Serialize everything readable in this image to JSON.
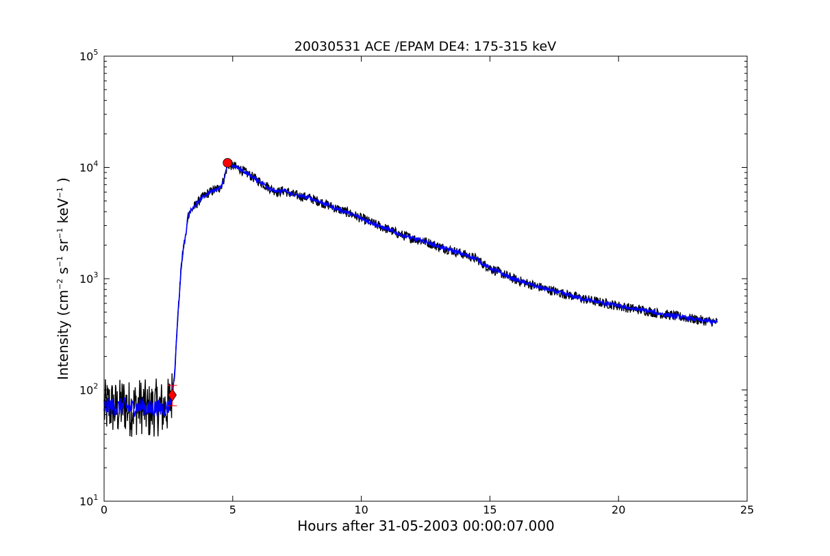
{
  "chart_data": {
    "type": "line",
    "title": "20030531 ACE /EPAM DE4: 175-315 keV",
    "xlabel": "Hours after 31-05-2003 00:00:07.000",
    "ylabel": {
      "prefix": "Intensity (cm",
      "exp1": "−2",
      "part2": " s",
      "exp2": "−1",
      "part3": " sr",
      "exp3": "−1",
      "part4": " keV",
      "exp4": "−1",
      "suffix": " )"
    },
    "xlim": [
      0,
      25
    ],
    "ylim": [
      10,
      100000
    ],
    "yscale": "log",
    "x_ticks": [
      "0",
      "5",
      "10",
      "15",
      "20",
      "25"
    ],
    "y_ticks": [
      {
        "base": "10",
        "exp": "1"
      },
      {
        "base": "10",
        "exp": "2"
      },
      {
        "base": "10",
        "exp": "3"
      },
      {
        "base": "10",
        "exp": "4"
      },
      {
        "base": "10",
        "exp": "5"
      }
    ],
    "grid": false,
    "series": [
      {
        "color": "#000000",
        "style": "raw-noisy",
        "x": [
          0,
          0.25,
          0.5,
          0.75,
          1.0,
          1.25,
          1.5,
          1.75,
          2.0,
          2.25,
          2.5,
          2.65,
          2.75,
          2.85,
          3.0,
          3.1,
          3.2,
          3.25,
          3.3,
          3.5,
          3.75,
          4.0,
          4.25,
          4.5,
          4.6,
          4.7,
          4.8,
          5.0,
          5.25,
          5.5,
          6.0,
          6.5,
          6.75,
          7.0,
          7.25,
          7.5,
          8.0,
          8.5,
          9.0,
          9.5,
          10.0,
          10.5,
          11.0,
          11.5,
          12.0,
          12.5,
          13.0,
          13.5,
          14.0,
          14.5,
          14.75,
          15.0,
          15.5,
          16.0,
          16.5,
          17.0,
          17.5,
          18.0,
          18.5,
          19.0,
          19.5,
          20.0,
          20.5,
          21.0,
          21.5,
          22.0,
          22.5,
          23.0,
          23.5,
          23.85
        ],
        "y": [
          68,
          72,
          66,
          75,
          68,
          70,
          72,
          64,
          70,
          68,
          72,
          90,
          150,
          400,
          1300,
          2000,
          2600,
          3600,
          3900,
          4400,
          5200,
          5800,
          6200,
          6600,
          7200,
          8500,
          10500,
          10400,
          9800,
          9000,
          7600,
          6400,
          6000,
          6200,
          5800,
          5600,
          5300,
          4800,
          4300,
          3900,
          3500,
          3100,
          2800,
          2500,
          2300,
          2150,
          1950,
          1800,
          1650,
          1500,
          1350,
          1250,
          1100,
          980,
          900,
          830,
          770,
          720,
          670,
          630,
          600,
          570,
          540,
          520,
          490,
          470,
          450,
          430,
          415,
          405
        ]
      },
      {
        "color": "#0000ff",
        "style": "smoothed",
        "x": [
          0,
          0.25,
          0.5,
          0.75,
          1.0,
          1.25,
          1.5,
          1.75,
          2.0,
          2.25,
          2.5,
          2.65,
          2.75,
          2.85,
          3.0,
          3.1,
          3.2,
          3.25,
          3.3,
          3.5,
          3.75,
          4.0,
          4.25,
          4.5,
          4.6,
          4.7,
          4.8,
          5.0,
          5.25,
          5.5,
          6.0,
          6.5,
          6.75,
          7.0,
          7.25,
          7.5,
          8.0,
          8.5,
          9.0,
          9.5,
          10.0,
          10.5,
          11.0,
          11.5,
          12.0,
          12.5,
          13.0,
          13.5,
          14.0,
          14.5,
          14.75,
          15.0,
          15.5,
          16.0,
          16.5,
          17.0,
          17.5,
          18.0,
          18.5,
          19.0,
          19.5,
          20.0,
          20.5,
          21.0,
          21.5,
          22.0,
          22.5,
          23.0,
          23.5,
          23.85
        ],
        "y": [
          70,
          71,
          69,
          72,
          69,
          70,
          71,
          67,
          69,
          68,
          71,
          90,
          150,
          400,
          1300,
          2000,
          2600,
          3600,
          3900,
          4400,
          5200,
          5800,
          6200,
          6600,
          7200,
          8500,
          10500,
          10400,
          9800,
          9000,
          7600,
          6400,
          6000,
          6200,
          5800,
          5600,
          5300,
          4800,
          4300,
          3900,
          3500,
          3100,
          2800,
          2500,
          2300,
          2150,
          1950,
          1800,
          1650,
          1500,
          1350,
          1250,
          1100,
          980,
          900,
          830,
          770,
          720,
          670,
          630,
          600,
          570,
          540,
          520,
          490,
          470,
          450,
          430,
          415,
          405
        ]
      }
    ],
    "markers": [
      {
        "shape": "diamond",
        "color": "#ff0000",
        "x": 2.65,
        "y": 90
      },
      {
        "shape": "circle",
        "color": "#ff0000",
        "x": 4.8,
        "y": 11000
      }
    ],
    "error_bar": {
      "color": "#ff0000",
      "x": 2.65,
      "y_low": 72,
      "y_high": 110
    }
  }
}
